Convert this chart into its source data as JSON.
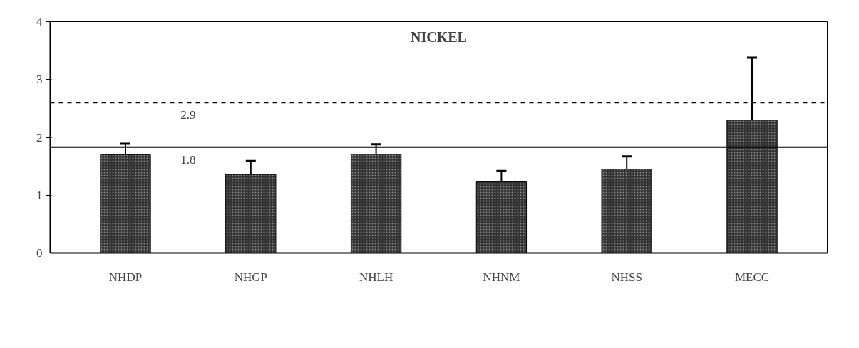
{
  "chart_data": {
    "type": "bar",
    "title": "NICKEL",
    "categories": [
      "NHDP",
      "NHGP",
      "NHLH",
      "NHNM",
      "NHSS",
      "MECC"
    ],
    "values": [
      1.7,
      1.36,
      1.71,
      1.23,
      1.45,
      2.3
    ],
    "errors": [
      [
        1.7,
        1.89
      ],
      [
        1.36,
        1.59
      ],
      [
        1.71,
        1.88
      ],
      [
        1.23,
        1.42
      ],
      [
        1.45,
        1.67
      ],
      [
        2.3,
        3.38
      ]
    ],
    "color": "#333333",
    "ylim": [
      0,
      4
    ],
    "yticks": [
      0,
      1,
      2,
      3,
      4
    ],
    "ref_lines": [
      {
        "axis": "y",
        "value": 2.6,
        "line_style": "dashed",
        "color": "#000000"
      },
      {
        "axis": "y",
        "value": 1.83,
        "line_style": "solid",
        "color": "#000000"
      }
    ],
    "annotations": [
      "2.9",
      "1.8"
    ],
    "grid": false
  }
}
